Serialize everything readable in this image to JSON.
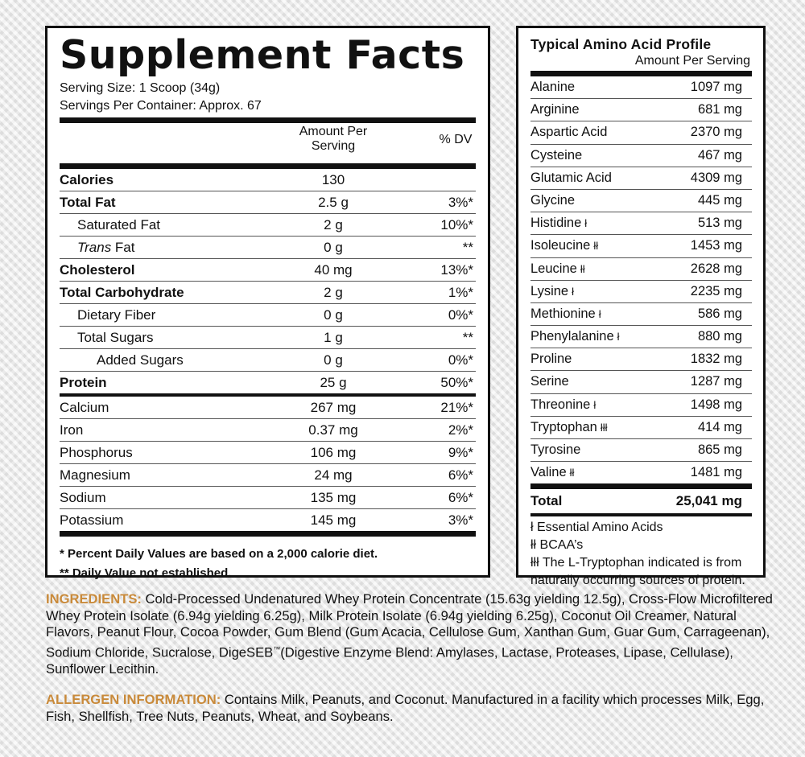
{
  "supplement_facts": {
    "title": "Supplement Facts",
    "serving_size": "Serving Size: 1 Scoop (34g)",
    "servings_per_container": "Servings Per Container: Approx. 67",
    "col_amount_line1": "Amount Per",
    "col_amount_line2": "Serving",
    "col_dv": "% DV",
    "rows_main": [
      {
        "label": "Calories",
        "value": "130",
        "dv": ""
      },
      {
        "label": "Total Fat",
        "value": "2.5 g",
        "dv": "3%*"
      },
      {
        "label": "Saturated Fat",
        "value": "2 g",
        "dv": "10%*"
      },
      {
        "label_italic": "Trans",
        "label": " Fat",
        "value": "0 g",
        "dv": "**"
      },
      {
        "label": "Cholesterol",
        "value": "40 mg",
        "dv": "13%*"
      },
      {
        "label": "Total Carbohydrate",
        "value": "2 g",
        "dv": "1%*"
      },
      {
        "label": "Dietary Fiber",
        "value": "0 g",
        "dv": "0%*"
      },
      {
        "label": "Total Sugars",
        "value": "1 g",
        "dv": "**"
      },
      {
        "label": "Added Sugars",
        "value": "0 g",
        "dv": "0%*"
      },
      {
        "label": "Protein",
        "value": "25 g",
        "dv": "50%*"
      }
    ],
    "rows_minerals": [
      {
        "label": "Calcium",
        "value": "267 mg",
        "dv": "21%*"
      },
      {
        "label": "Iron",
        "value": "0.37 mg",
        "dv": "2%*"
      },
      {
        "label": "Phosphorus",
        "value": "106 mg",
        "dv": "9%*"
      },
      {
        "label": "Magnesium",
        "value": "24 mg",
        "dv": "6%*"
      },
      {
        "label": "Sodium",
        "value": "135 mg",
        "dv": "6%*"
      },
      {
        "label": "Potassium",
        "value": "145 mg",
        "dv": "3%*"
      }
    ],
    "footnote_1": "* Percent Daily Values are based on a 2,000 calorie diet.",
    "footnote_2": "** Daily Value not established."
  },
  "amino_profile": {
    "title": "Typical Amino Acid Profile",
    "subtitle": "Amount Per Serving",
    "rows": [
      {
        "name": "Alanine",
        "mark": "",
        "value": "1097 mg"
      },
      {
        "name": "Arginine",
        "mark": "",
        "value": "681 mg"
      },
      {
        "name": "Aspartic Acid",
        "mark": "",
        "value": "2370 mg"
      },
      {
        "name": "Cysteine",
        "mark": "",
        "value": "467 mg"
      },
      {
        "name": "Glutamic Acid",
        "mark": "",
        "value": "4309 mg"
      },
      {
        "name": "Glycine",
        "mark": "",
        "value": "445 mg"
      },
      {
        "name": "Histidine",
        "mark": "ł",
        "value": "513 mg"
      },
      {
        "name": "Isoleucine",
        "mark": "łł",
        "value": "1453 mg"
      },
      {
        "name": "Leucine",
        "mark": "łł",
        "value": "2628 mg"
      },
      {
        "name": "Lysine",
        "mark": "ł",
        "value": "2235 mg"
      },
      {
        "name": "Methionine",
        "mark": "ł",
        "value": "586 mg"
      },
      {
        "name": "Phenylalanine",
        "mark": "ł",
        "value": "880 mg"
      },
      {
        "name": "Proline",
        "mark": "",
        "value": "1832 mg"
      },
      {
        "name": "Serine",
        "mark": "",
        "value": "1287 mg"
      },
      {
        "name": "Threonine",
        "mark": "ł",
        "value": "1498 mg"
      },
      {
        "name": "Tryptophan",
        "mark": "łłł",
        "value": "414 mg"
      },
      {
        "name": "Tyrosine",
        "mark": "",
        "value": "865 mg"
      },
      {
        "name": "Valine",
        "mark": "łł",
        "value": "1481 mg"
      }
    ],
    "total_label": "Total",
    "total_value": "25,041 mg",
    "legend_1": "ł Essential Amino Acids",
    "legend_2": "łł BCAA’s",
    "legend_3a": "łłł The L-Tryptophan indicated is from",
    "legend_3b": "naturally occurring sources of protein."
  },
  "ingredients": {
    "heading": "INGREDIENTS:",
    "text_a": " Cold-Processed Undenatured Whey Protein Concentrate (15.63g yielding 12.5g), Cross-Flow Microfiltered Whey Protein Isolate (6.94g yielding 6.25g), Milk Protein Isolate (6.94g yielding 6.25g), Coconut Oil Creamer, Natural Flavors, Peanut Flour, Cocoa Powder, Gum Blend (Gum Acacia, Cellulose Gum, Xanthan Gum, Guar Gum, Carrageenan), Sodium Chloride, Sucralose, DigeSEB",
    "tm": "™",
    "text_b": "(Digestive Enzyme Blend: Amylases, Lactase, Proteases, Lipase, Cellulase), Sunflower Lecithin."
  },
  "allergen": {
    "heading": "ALLERGEN INFORMATION:",
    "text": " Contains Milk, Peanuts, and Coconut. Manufactured in a facility which processes Milk, Egg, Fish, Shellfish, Tree Nuts, Peanuts, Wheat, and Soybeans."
  },
  "colors": {
    "heading_accent": "#c98a3a",
    "panel_border": "#111111",
    "panel_background": "#ffffff"
  }
}
